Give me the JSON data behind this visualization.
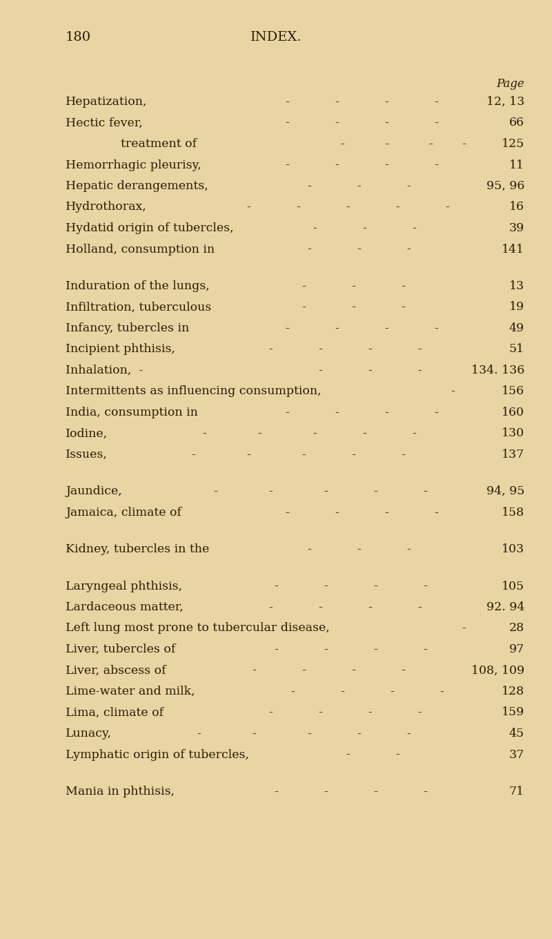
{
  "bg_color": "#e8d5a3",
  "text_color": "#2a1a0a",
  "page_number": "180",
  "header": "INDEX.",
  "page_label": "Page",
  "figsize": [
    8.0,
    13.6
  ],
  "dpi": 100,
  "entries": [
    {
      "text": "Hepatization,",
      "dashes": [
        0.52,
        0.61,
        0.7,
        0.79
      ],
      "page_ref": "12, 13",
      "indent": 0
    },
    {
      "text": "Hectic fever,",
      "dashes": [
        0.52,
        0.61,
        0.7,
        0.79
      ],
      "page_ref": "66",
      "indent": 0
    },
    {
      "text": "treatment of",
      "dashes": [
        0.62,
        0.7,
        0.78,
        0.84
      ],
      "page_ref": "125",
      "indent": 1
    },
    {
      "text": "Hemorrhagic pleurisy,",
      "dashes": [
        0.52,
        0.61,
        0.7,
        0.79
      ],
      "page_ref": "11",
      "indent": 0
    },
    {
      "text": "Hepatic derangements,",
      "dashes": [
        0.56,
        0.65,
        0.74
      ],
      "page_ref": "95, 96",
      "indent": 0
    },
    {
      "text": "Hydrothorax,",
      "dashes": [
        0.45,
        0.54,
        0.63,
        0.72,
        0.81
      ],
      "page_ref": "16",
      "indent": 0
    },
    {
      "text": "Hydatid origin of tubercles,",
      "dashes": [
        0.57,
        0.66,
        0.75
      ],
      "page_ref": "39",
      "indent": 0
    },
    {
      "text": "Holland, consumption in",
      "dashes": [
        0.56,
        0.65,
        0.74
      ],
      "page_ref": "141",
      "indent": 0
    },
    {
      "text": "",
      "dashes": [],
      "page_ref": "",
      "indent": 0
    },
    {
      "text": "Induration of the lungs,",
      "dashes": [
        0.55,
        0.64,
        0.73
      ],
      "page_ref": "13",
      "indent": 0
    },
    {
      "text": "Infiltration, tuberculous",
      "dashes": [
        0.55,
        0.64,
        0.73
      ],
      "page_ref": "19",
      "indent": 0
    },
    {
      "text": "Infancy, tubercles in",
      "dashes": [
        0.52,
        0.61,
        0.7,
        0.79
      ],
      "page_ref": "49",
      "indent": 0
    },
    {
      "text": "Incipient phthisis,",
      "dashes": [
        0.49,
        0.58,
        0.67,
        0.76
      ],
      "page_ref": "51",
      "indent": 0
    },
    {
      "text": "Inhalation,  -",
      "dashes": [
        0.58,
        0.67,
        0.76
      ],
      "page_ref": "134. 136",
      "indent": 0
    },
    {
      "text": "Intermittents as influencing consumption,",
      "dashes": [
        0.82
      ],
      "page_ref": "156",
      "indent": 0
    },
    {
      "text": "India, consumption in",
      "dashes": [
        0.52,
        0.61,
        0.7,
        0.79
      ],
      "page_ref": "160",
      "indent": 0
    },
    {
      "text": "Iodine,",
      "dashes": [
        0.37,
        0.47,
        0.57,
        0.66,
        0.75
      ],
      "page_ref": "130",
      "indent": 0
    },
    {
      "text": "Issues,",
      "dashes": [
        0.35,
        0.45,
        0.55,
        0.64,
        0.73
      ],
      "page_ref": "137",
      "indent": 0
    },
    {
      "text": "",
      "dashes": [],
      "page_ref": "",
      "indent": 0
    },
    {
      "text": "Jaundice,",
      "dashes": [
        0.39,
        0.49,
        0.59,
        0.68,
        0.77
      ],
      "page_ref": "94, 95",
      "indent": 0
    },
    {
      "text": "Jamaica, climate of",
      "dashes": [
        0.52,
        0.61,
        0.7,
        0.79
      ],
      "page_ref": "158",
      "indent": 0
    },
    {
      "text": "",
      "dashes": [],
      "page_ref": "",
      "indent": 0
    },
    {
      "text": "Kidney, tubercles in the",
      "dashes": [
        0.56,
        0.65,
        0.74
      ],
      "page_ref": "103",
      "indent": 0
    },
    {
      "text": "",
      "dashes": [],
      "page_ref": "",
      "indent": 0
    },
    {
      "text": "Laryngeal phthisis,",
      "dashes": [
        0.5,
        0.59,
        0.68,
        0.77
      ],
      "page_ref": "105",
      "indent": 0
    },
    {
      "text": "Lardaceous matter,",
      "dashes": [
        0.49,
        0.58,
        0.67,
        0.76
      ],
      "page_ref": "92. 94",
      "indent": 0
    },
    {
      "text": "Left lung most prone to tubercular disease,",
      "dashes": [
        0.84
      ],
      "page_ref": "28",
      "indent": 0
    },
    {
      "text": "Liver, tubercles of",
      "dashes": [
        0.5,
        0.59,
        0.68,
        0.77
      ],
      "page_ref": "97",
      "indent": 0
    },
    {
      "text": "Liver, abscess of",
      "dashes": [
        0.46,
        0.55,
        0.64,
        0.73
      ],
      "page_ref": "108, 109",
      "indent": 0
    },
    {
      "text": "Lime-water and milk,",
      "dashes": [
        0.53,
        0.62,
        0.71,
        0.8
      ],
      "page_ref": "128",
      "indent": 0
    },
    {
      "text": "Lima, climate of",
      "dashes": [
        0.49,
        0.58,
        0.67,
        0.76
      ],
      "page_ref": "159",
      "indent": 0
    },
    {
      "text": "Lunacy,",
      "dashes": [
        0.36,
        0.46,
        0.56,
        0.65,
        0.74
      ],
      "page_ref": "45",
      "indent": 0
    },
    {
      "text": "Lymphatic origin of tubercles,",
      "dashes": [
        0.63,
        0.72
      ],
      "page_ref": "37",
      "indent": 0
    },
    {
      "text": "",
      "dashes": [],
      "page_ref": "",
      "indent": 0
    },
    {
      "text": "Mania in phthisis,",
      "dashes": [
        0.5,
        0.59,
        0.68,
        0.77
      ],
      "page_ref": "71",
      "indent": 0
    }
  ]
}
